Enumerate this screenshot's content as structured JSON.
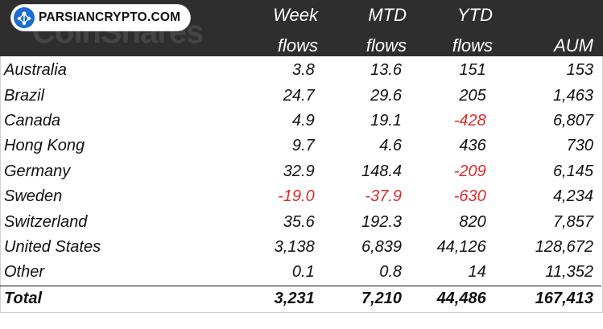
{
  "watermark": {
    "brand": "CoinShares"
  },
  "logo": {
    "text": "PARSIANCRYPTO.COM",
    "icon": "network-nodes-icon",
    "color": "#1b6fd1"
  },
  "header": {
    "columns": [
      {
        "line1": "Week",
        "line2": "flows"
      },
      {
        "line1": "MTD",
        "line2": "flows"
      },
      {
        "line1": "YTD",
        "line2": "flows"
      },
      {
        "line1": "",
        "line2": "AUM"
      }
    ]
  },
  "colors": {
    "header_bg": "#2e2e2e",
    "negative": "#e0292b"
  },
  "rows": [
    {
      "name": "Australia",
      "week": "3.8",
      "mtd": "13.6",
      "ytd": "151",
      "aum": "153"
    },
    {
      "name": "Brazil",
      "week": "24.7",
      "mtd": "29.6",
      "ytd": "205",
      "aum": "1,463"
    },
    {
      "name": "Canada",
      "week": "4.9",
      "mtd": "19.1",
      "ytd": "-428",
      "aum": "6,807"
    },
    {
      "name": "Hong Kong",
      "week": "9.7",
      "mtd": "4.6",
      "ytd": "436",
      "aum": "730"
    },
    {
      "name": "Germany",
      "week": "32.9",
      "mtd": "148.4",
      "ytd": "-209",
      "aum": "6,145"
    },
    {
      "name": "Sweden",
      "week": "-19.0",
      "mtd": "-37.9",
      "ytd": "-630",
      "aum": "4,234"
    },
    {
      "name": "Switzerland",
      "week": "35.6",
      "mtd": "192.3",
      "ytd": "820",
      "aum": "7,857"
    },
    {
      "name": "United States",
      "week": "3,138",
      "mtd": "6,839",
      "ytd": "44,126",
      "aum": "128,672"
    },
    {
      "name": "Other",
      "week": "0.1",
      "mtd": "0.8",
      "ytd": "14",
      "aum": "11,352"
    }
  ],
  "total": {
    "name": "Total",
    "week": "3,231",
    "mtd": "7,210",
    "ytd": "44,486",
    "aum": "167,413"
  }
}
